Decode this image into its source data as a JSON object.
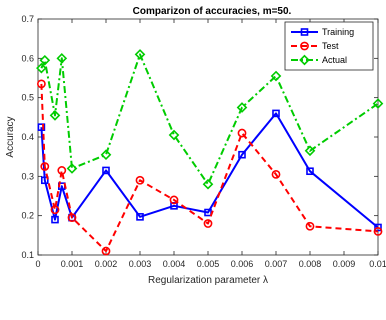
{
  "chart_data": {
    "type": "line",
    "title": "Comparizon of accuracies,  m=50.",
    "xlabel": "Regularization parameter λ",
    "ylabel": "Accuracy",
    "xlim": [
      0,
      0.01
    ],
    "ylim": [
      0.1,
      0.7
    ],
    "xticks": [
      0,
      0.001,
      0.002,
      0.003,
      0.004,
      0.005,
      0.006,
      0.007,
      0.008,
      0.009,
      0.01
    ],
    "xtick_labels": [
      "0",
      "0.001",
      "0.002",
      "0.003",
      "0.004",
      "0.005",
      "0.006",
      "0.007",
      "0.008",
      "0.009",
      "0.01"
    ],
    "yticks": [
      0.1,
      0.2,
      0.3,
      0.4,
      0.5,
      0.6,
      0.7
    ],
    "ytick_labels": [
      "0.1",
      "0.2",
      "0.3",
      "0.4",
      "0.5",
      "0.6",
      "0.7"
    ],
    "grid": false,
    "legend_position": "top-right",
    "x": [
      0.0001,
      0.0002,
      0.0005,
      0.0007,
      0.001,
      0.002,
      0.003,
      0.004,
      0.005,
      0.006,
      0.007,
      0.008,
      0.01
    ],
    "series": [
      {
        "name": "Training",
        "color": "#0000ff",
        "line_style": "solid",
        "marker": "square",
        "values": [
          0.425,
          0.29,
          0.19,
          0.275,
          0.195,
          0.315,
          0.197,
          0.225,
          0.208,
          0.355,
          0.46,
          0.313,
          0.17
        ]
      },
      {
        "name": "Test",
        "color": "#ff0000",
        "line_style": "dashed",
        "marker": "circle",
        "values": [
          0.535,
          0.325,
          0.215,
          0.315,
          0.195,
          0.11,
          0.29,
          0.24,
          0.18,
          0.41,
          0.305,
          0.173,
          0.16
        ]
      },
      {
        "name": "Actual",
        "color": "#00cc00",
        "line_style": "dash-dot",
        "marker": "diamond",
        "values": [
          0.575,
          0.595,
          0.455,
          0.6,
          0.32,
          0.355,
          0.61,
          0.405,
          0.28,
          0.475,
          0.555,
          0.365,
          0.485
        ]
      }
    ]
  }
}
